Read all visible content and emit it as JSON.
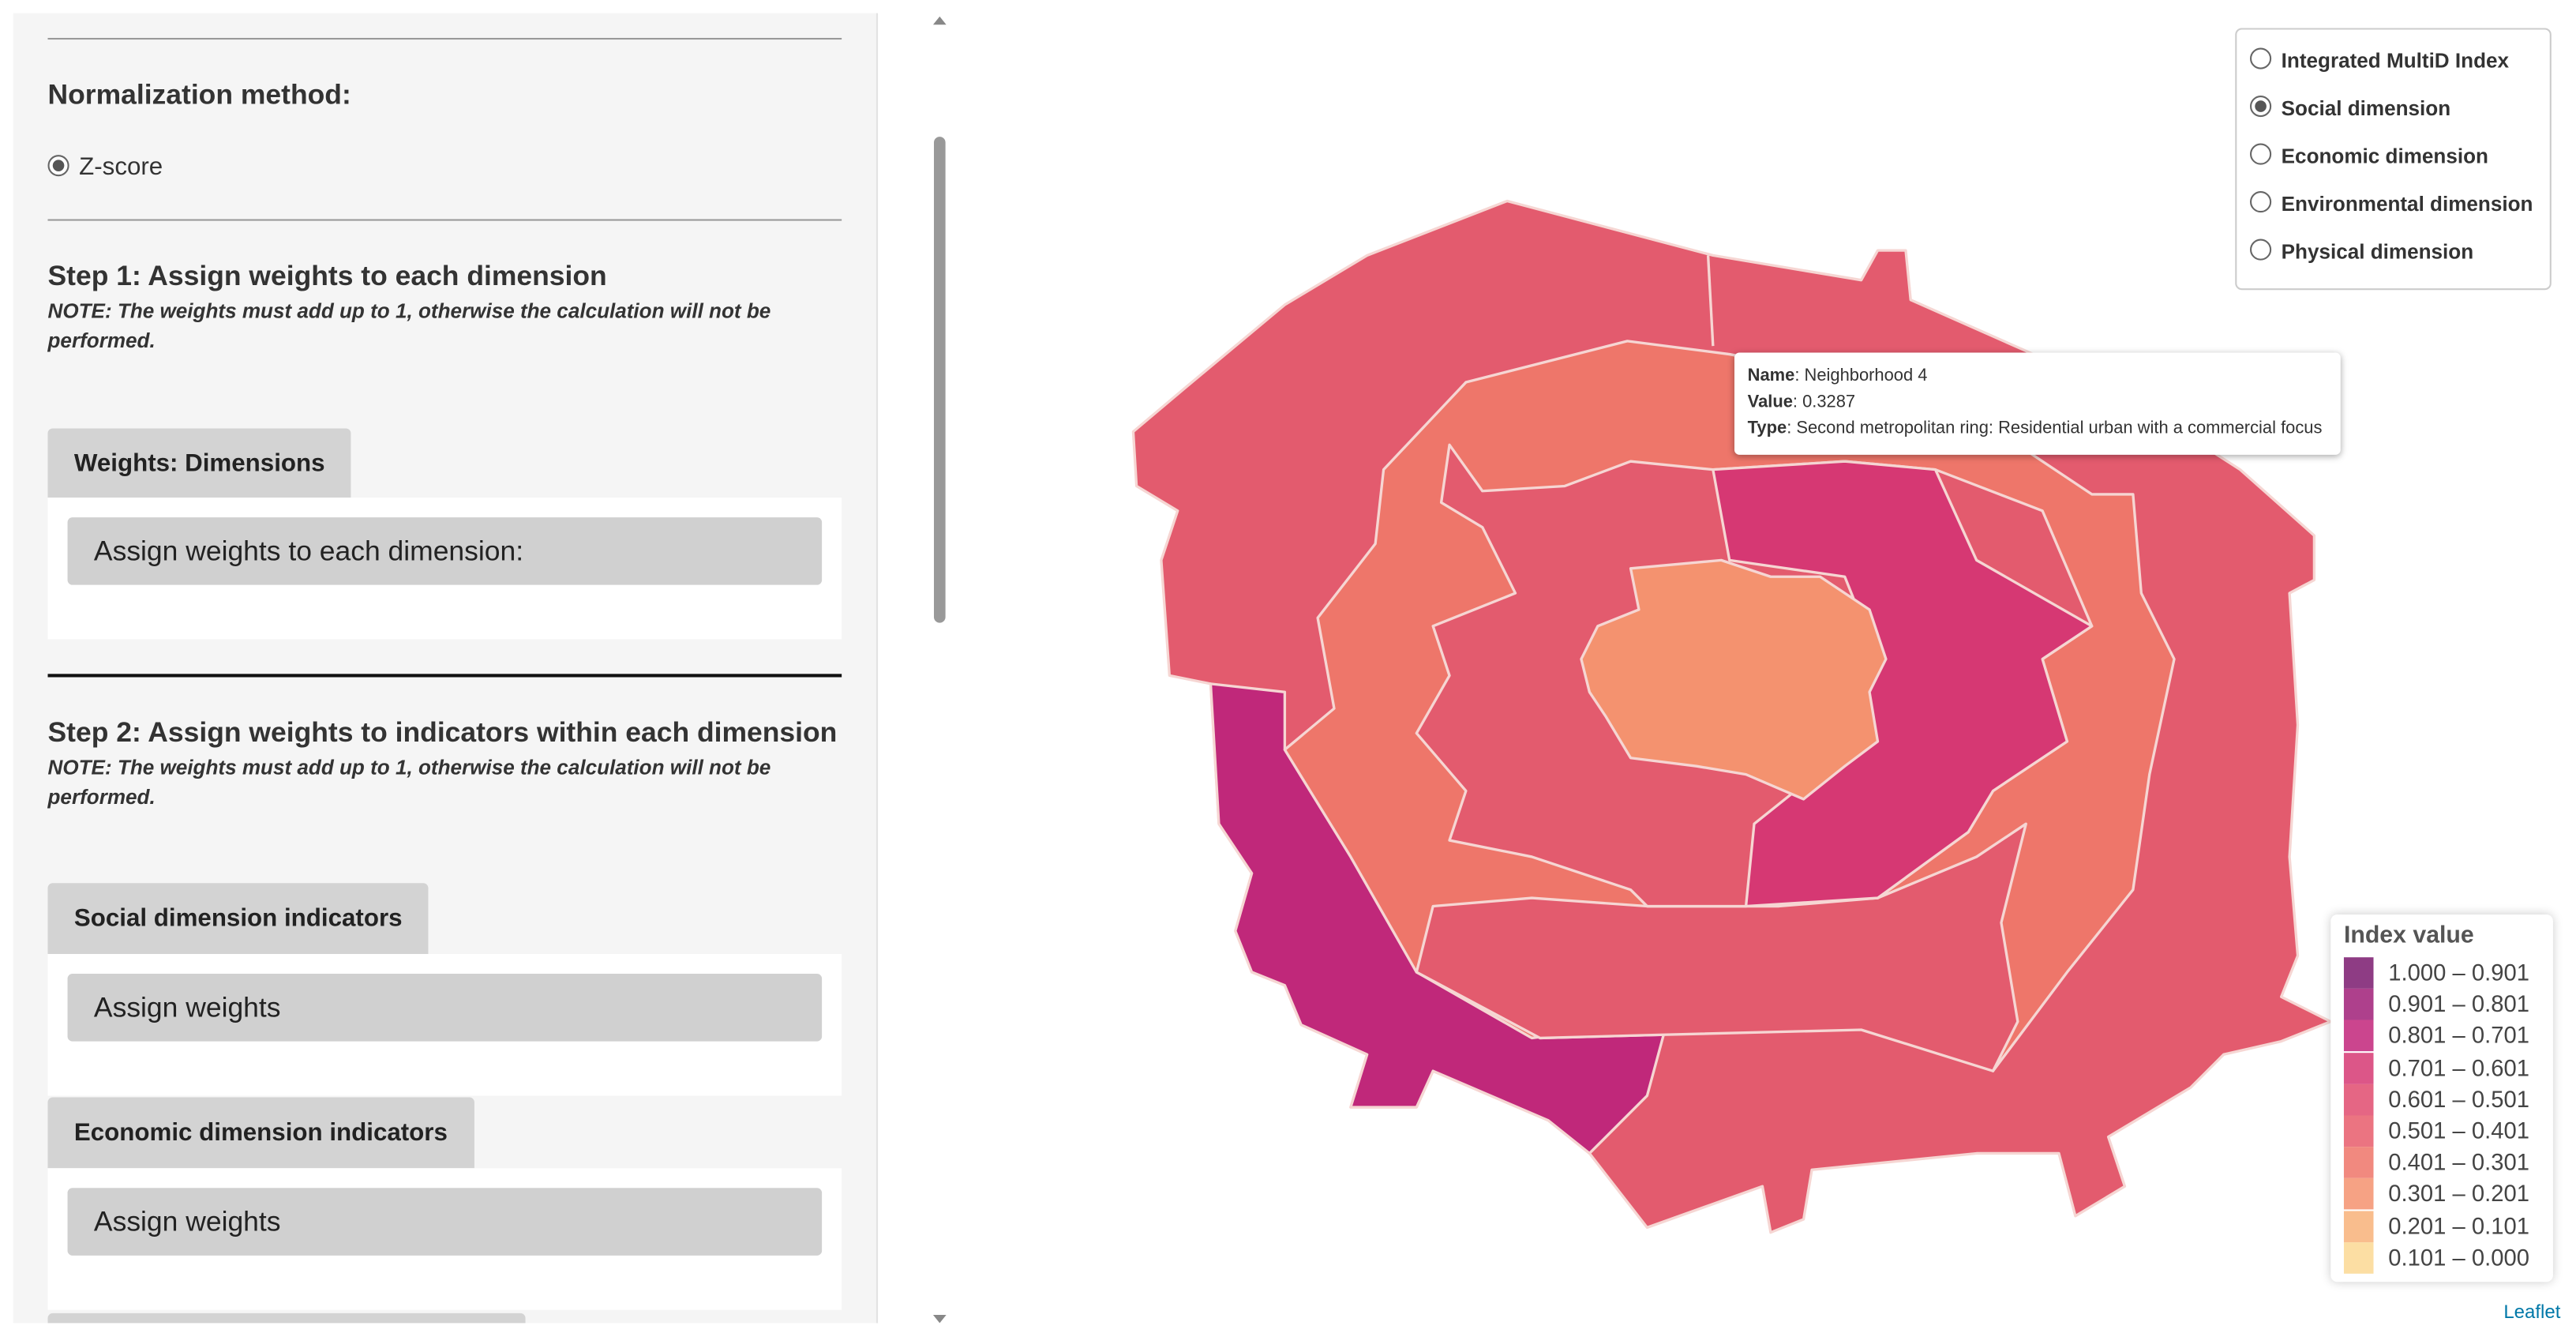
{
  "sidebar": {
    "normalization_title": "Normalization method:",
    "normalization_option": "Z-score",
    "step1": {
      "title": "Step 1: Assign weights to each dimension",
      "note": "NOTE: The weights must add up to 1, otherwise the calculation will not be performed.",
      "tab": "Weights: Dimensions",
      "button": "Assign weights to each dimension:"
    },
    "step2": {
      "title": "Step 2: Assign weights to indicators within each dimension",
      "note": "NOTE: The weights must add up to 1, otherwise the calculation will not be performed.",
      "sections": [
        {
          "tab": "Social dimension indicators",
          "button": "Assign weights"
        },
        {
          "tab": "Economic dimension indicators",
          "button": "Assign weights"
        }
      ]
    }
  },
  "layer_control": {
    "options": [
      "Integrated MultiD Index",
      "Social dimension",
      "Economic dimension",
      "Environmental dimension",
      "Physical dimension"
    ],
    "selected": 1
  },
  "tooltip": {
    "fields": [
      {
        "label": "Name",
        "value": ": Neighborhood 4"
      },
      {
        "label": "Value",
        "value": ": 0.3287"
      },
      {
        "label": "Type",
        "value": ": Second metropolitan ring: Residential urban with a commercial focus"
      }
    ]
  },
  "legend": {
    "title": "Index value",
    "items": [
      {
        "label": "1.000 – 0.901",
        "color": "#7a1a6e"
      },
      {
        "label": "0.901 – 0.801",
        "color": "#a01f78"
      },
      {
        "label": "0.801 – 0.701",
        "color": "#c2257a"
      },
      {
        "label": "0.701 – 0.601",
        "color": "#d63873"
      },
      {
        "label": "0.601 – 0.501",
        "color": "#e04b6e"
      },
      {
        "label": "0.501 – 0.401",
        "color": "#e75c6b"
      },
      {
        "label": "0.401 – 0.301",
        "color": "#ef7468"
      },
      {
        "label": "0.301 – 0.201",
        "color": "#f4926f"
      },
      {
        "label": "0.201 – 0.101",
        "color": "#f8b179"
      },
      {
        "label": "0.101 – 0.000",
        "color": "#fbd893"
      }
    ]
  },
  "attribution": "Leaflet"
}
